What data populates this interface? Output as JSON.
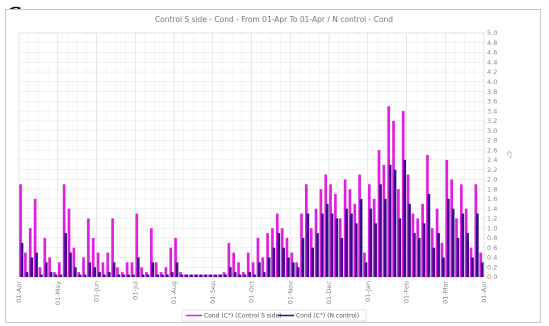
{
  "panel_number": "6",
  "chart_data": {
    "type": "bar",
    "title": "Control S side - Cond - From 01-Apr To 01-Apr / N control - Cond",
    "ylabel": "C°",
    "ylim": [
      0,
      5.0
    ],
    "y_ticks": [
      "0.0",
      "0.2",
      "0.4",
      "0.6",
      "0.8",
      "1.0",
      "1.2",
      "1.4",
      "1.6",
      "1.8",
      "2.0",
      "2.2",
      "2.4",
      "2.6",
      "2.8",
      "3.0",
      "3.2",
      "3.4",
      "3.6",
      "3.8",
      "4.0",
      "4.2",
      "4.4",
      "4.6",
      "4.8",
      "5.0"
    ],
    "x_ticks": [
      "01-Apr",
      "01-May",
      "01-Jun",
      "01-Jul",
      "01-Aug",
      "01-Sep",
      "01-Oct",
      "01-Nov",
      "01-Dec",
      "01-Jan",
      "01-Feb",
      "01-Mar",
      "01-Apr"
    ],
    "grid": true,
    "legend_position": "bottom",
    "colors": {
      "series_1": "#e020e0",
      "series_2": "#3a0a8c"
    },
    "series": [
      {
        "name": "Cond (C°) (Control S side)",
        "values": [
          1.9,
          0.5,
          1.0,
          1.6,
          0.2,
          0.8,
          0.4,
          0.1,
          0.3,
          1.9,
          1.4,
          0.6,
          0.1,
          0.4,
          1.2,
          0.8,
          0.5,
          0.3,
          0.5,
          1.2,
          0.2,
          0.1,
          0.3,
          0.3,
          1.3,
          0.2,
          0.1,
          1.0,
          0.3,
          0.1,
          0.2,
          0.6,
          0.8,
          0.1,
          0.05,
          0.05,
          0.05,
          0.05,
          0.05,
          0.05,
          0.05,
          0.05,
          0.1,
          0.7,
          0.5,
          0.3,
          0.1,
          0.5,
          0.3,
          0.8,
          0.4,
          0.9,
          1.0,
          1.3,
          1.0,
          0.8,
          0.5,
          0.3,
          1.3,
          1.9,
          1.0,
          1.4,
          1.8,
          2.1,
          1.9,
          1.7,
          1.2,
          2.0,
          1.8,
          1.5,
          2.1,
          0.5,
          1.9,
          1.6,
          2.6,
          2.3,
          3.5,
          3.2,
          1.8,
          3.4,
          2.1,
          1.3,
          1.2,
          1.5,
          2.5,
          1.0,
          1.4,
          0.7,
          2.4,
          2.0,
          1.2,
          1.9,
          1.4,
          0.6,
          1.9,
          0.5
        ]
      },
      {
        "name": "Cond (C°) (N control)",
        "values": [
          0.7,
          0.1,
          0.4,
          0.5,
          0.05,
          0.3,
          0.1,
          0.05,
          0.05,
          0.9,
          0.5,
          0.2,
          0.05,
          0.05,
          0.3,
          0.2,
          0.1,
          0.05,
          0.1,
          0.3,
          0.05,
          0.05,
          0.05,
          0.05,
          0.4,
          0.05,
          0.05,
          0.3,
          0.05,
          0.05,
          0.05,
          0.1,
          0.3,
          0.05,
          0.05,
          0.05,
          0.05,
          0.05,
          0.05,
          0.05,
          0.05,
          0.05,
          0.05,
          0.2,
          0.1,
          0.05,
          0.05,
          0.1,
          0.05,
          0.3,
          0.1,
          0.4,
          0.6,
          0.9,
          0.6,
          0.4,
          0.3,
          0.2,
          0.8,
          1.3,
          0.6,
          0.9,
          1.3,
          1.5,
          1.3,
          1.2,
          0.8,
          1.4,
          1.3,
          1.1,
          1.6,
          0.3,
          1.4,
          1.1,
          1.9,
          1.6,
          2.3,
          2.2,
          1.2,
          2.4,
          1.5,
          0.9,
          0.8,
          1.1,
          1.7,
          0.6,
          0.9,
          0.4,
          1.6,
          1.4,
          0.8,
          1.3,
          0.9,
          0.4,
          1.3,
          0.3
        ]
      }
    ]
  }
}
